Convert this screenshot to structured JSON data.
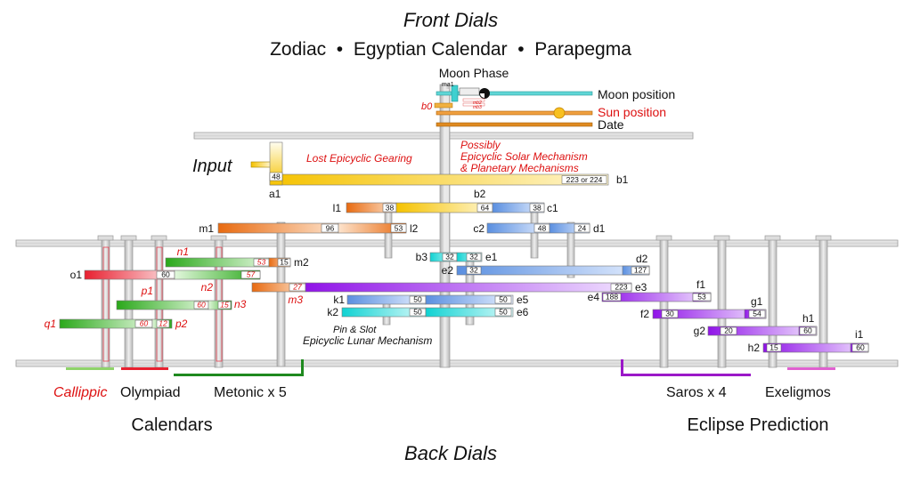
{
  "titles": {
    "front": "Front Dials",
    "front_sub": "Zodiac  •  Egyptian Calendar  •  Parapegma",
    "back": "Back Dials"
  },
  "labels": {
    "moon_phase": "Moon Phase",
    "moon_position": "Moon position",
    "sun_position": "Sun position",
    "date": "Date",
    "input": "Input",
    "lost_epicyclic": "Lost Epicyclic Gearing",
    "possibly_1": "Possibly",
    "possibly_2": "Epicyclic Solar Mechanism",
    "possibly_3": "& Planetary Mechanisms",
    "pin_slot": "Pin & Slot",
    "epicyclic_lunar": "Epicyclic Lunar Mechanism",
    "callippic": "Callippic",
    "olympiad": "Olympiad",
    "metonic": "Metonic x 5",
    "saros": "Saros x 4",
    "exeligmos": "Exeligmos",
    "calendars": "Calendars",
    "eclipse_prediction": "Eclipse Prediction",
    "ma1": "ma1",
    "b0": "b0",
    "mb2": "mb2",
    "mb3": "mb3"
  },
  "gears": {
    "a1": {
      "name": "a1",
      "teeth": "48"
    },
    "b1": {
      "name": "b1",
      "teeth": "223 or 224"
    },
    "b2": {
      "name": "b2",
      "teeth": "64"
    },
    "l1": {
      "name": "l1",
      "teeth": "38"
    },
    "c1": {
      "name": "c1",
      "teeth": "38"
    },
    "m1": {
      "name": "m1",
      "teeth": "96"
    },
    "l2": {
      "name": "l2",
      "teeth": "53"
    },
    "c2": {
      "name": "c2",
      "teeth": "48"
    },
    "d1": {
      "name": "d1",
      "teeth": "24"
    },
    "n1": {
      "name": "n1",
      "teeth": "53"
    },
    "m2": {
      "name": "m2",
      "teeth": "15"
    },
    "o1": {
      "name": "o1",
      "teeth": "60"
    },
    "n2": {
      "name": "n2",
      "teeth": "57"
    },
    "m3": {
      "name": "m3",
      "teeth": "27"
    },
    "p1": {
      "name": "p1",
      "teeth": "60"
    },
    "n3": {
      "name": "n3",
      "teeth": "15"
    },
    "q1": {
      "name": "q1",
      "teeth": "60"
    },
    "p2": {
      "name": "p2",
      "teeth": "12"
    },
    "b3": {
      "name": "b3",
      "teeth": "32"
    },
    "e1": {
      "name": "e1",
      "teeth": "32"
    },
    "e2": {
      "name": "e2",
      "teeth": "32"
    },
    "d2": {
      "name": "d2",
      "teeth": "127"
    },
    "e3": {
      "name": "e3",
      "teeth": "223"
    },
    "e4": {
      "name": "e4",
      "teeth": "188"
    },
    "f1": {
      "name": "f1",
      "teeth": "53"
    },
    "k1": {
      "name": "k1",
      "teeth": "50"
    },
    "e5": {
      "name": "e5",
      "teeth": "50"
    },
    "k2": {
      "name": "k2",
      "teeth": "50"
    },
    "e6": {
      "name": "e6",
      "teeth": "50"
    },
    "f2": {
      "name": "f2",
      "teeth": "30"
    },
    "g1": {
      "name": "g1",
      "teeth": "54"
    },
    "g2": {
      "name": "g2",
      "teeth": "20"
    },
    "h1": {
      "name": "h1",
      "teeth": "60"
    },
    "h2": {
      "name": "h2",
      "teeth": "15"
    },
    "i1": {
      "name": "i1",
      "teeth": "60"
    }
  },
  "colors": {
    "black": "#111111",
    "red": "#dd1111",
    "plate": "#d9d9d9",
    "axle": "#cccccc",
    "yellow": "#f5c200",
    "orange": "#ec7a1a",
    "blue": "#6f9de6",
    "green": "#3cb81a",
    "purple": "#9b1fe6",
    "cyan": "#20d6d6",
    "magenta": "#e050d0",
    "pinkred": "#e83040"
  }
}
